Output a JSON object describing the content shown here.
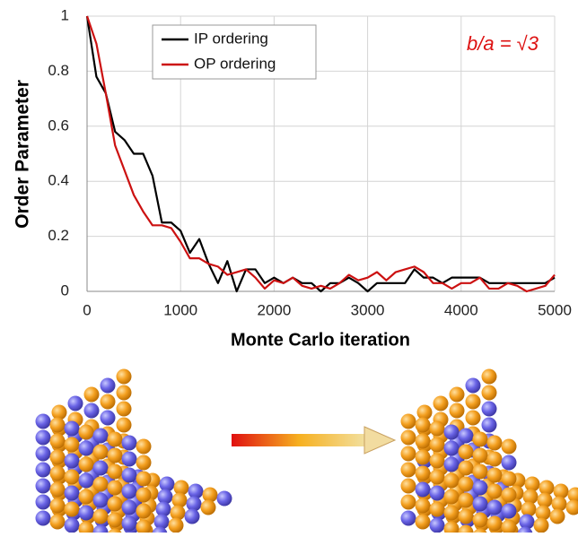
{
  "chart_data": {
    "type": "line",
    "xlabel": "Monte Carlo iteration",
    "ylabel": "Order Parameter",
    "annotation": "b/a = √3",
    "x": [
      0,
      100,
      200,
      300,
      400,
      500,
      600,
      700,
      800,
      900,
      1000,
      1100,
      1200,
      1300,
      1400,
      1500,
      1600,
      1700,
      1800,
      1900,
      2000,
      2100,
      2200,
      2300,
      2400,
      2500,
      2600,
      2700,
      2800,
      2900,
      3000,
      3100,
      3200,
      3300,
      3400,
      3500,
      3600,
      3700,
      3800,
      3900,
      4000,
      4100,
      4200,
      4300,
      4400,
      4500,
      4600,
      4700,
      4800,
      4900,
      5000
    ],
    "series": [
      {
        "name": "IP ordering",
        "color": "#000000",
        "values": [
          1,
          0.78,
          0.72,
          0.58,
          0.55,
          0.5,
          0.5,
          0.42,
          0.25,
          0.25,
          0.22,
          0.14,
          0.19,
          0.1,
          0.03,
          0.11,
          0,
          0.08,
          0.08,
          0.03,
          0.05,
          0.03,
          0.05,
          0.03,
          0.03,
          0,
          0.03,
          0.03,
          0.05,
          0.03,
          0,
          0.03,
          0.03,
          0.03,
          0.03,
          0.08,
          0.05,
          0.05,
          0.03,
          0.05,
          0.05,
          0.05,
          0.05,
          0.03,
          0.03,
          0.03,
          0.03,
          0.03,
          0.03,
          0.03,
          0.05
        ]
      },
      {
        "name": "OP ordering",
        "color": "#cc1111",
        "values": [
          1,
          0.9,
          0.72,
          0.53,
          0.44,
          0.35,
          0.29,
          0.24,
          0.24,
          0.23,
          0.18,
          0.12,
          0.12,
          0.1,
          0.09,
          0.06,
          0.07,
          0.08,
          0.05,
          0.01,
          0.04,
          0.03,
          0.05,
          0.02,
          0.01,
          0.02,
          0.01,
          0.03,
          0.06,
          0.04,
          0.05,
          0.07,
          0.04,
          0.07,
          0.08,
          0.09,
          0.07,
          0.03,
          0.03,
          0.01,
          0.03,
          0.03,
          0.05,
          0.01,
          0.01,
          0.03,
          0.02,
          0,
          0.01,
          0.02,
          0.06
        ]
      }
    ],
    "xlim": [
      0,
      5000
    ],
    "xticks": [
      0,
      1000,
      2000,
      3000,
      4000,
      5000
    ],
    "ylim": [
      0,
      1
    ],
    "yticks": [
      0,
      0.2,
      0.4,
      0.6,
      0.8,
      1
    ],
    "grid": true,
    "legend": "top-left"
  }
}
